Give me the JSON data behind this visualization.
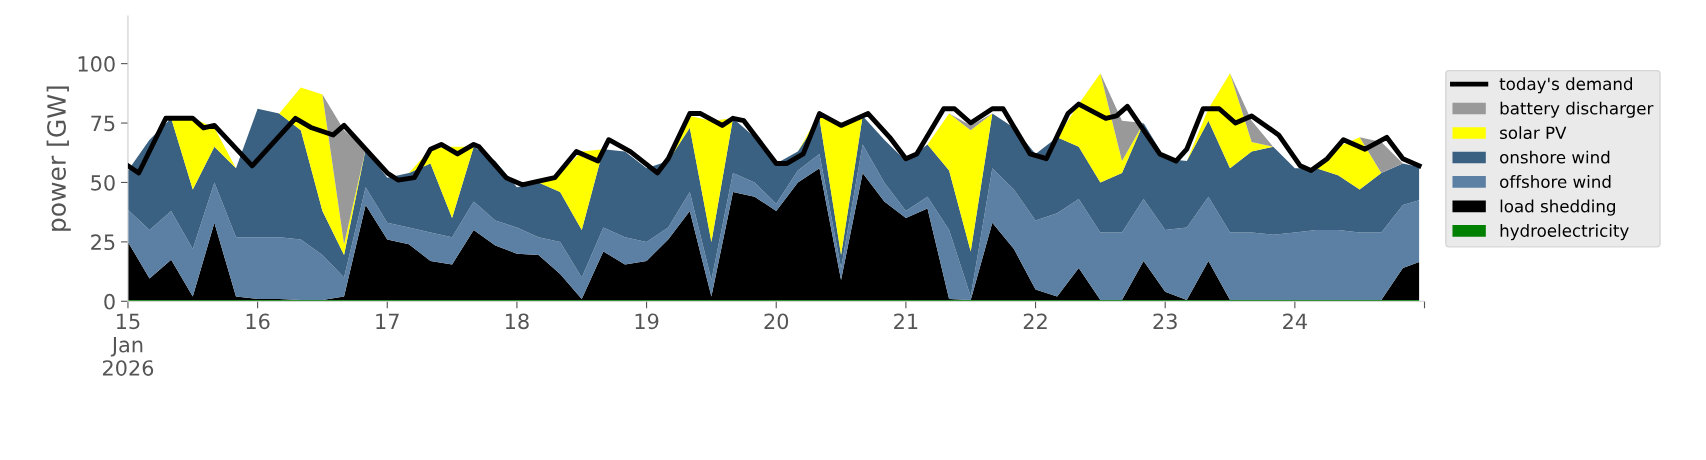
{
  "chart_data": {
    "type": "area",
    "stacked": true,
    "ylabel": "power [GW]",
    "x": [
      "2026-01-15T00:00",
      "2026-01-15T04:00",
      "2026-01-15T08:00",
      "2026-01-15T12:00",
      "2026-01-15T16:00",
      "2026-01-15T20:00",
      "2026-01-16T00:00",
      "2026-01-16T04:00",
      "2026-01-16T08:00",
      "2026-01-16T12:00",
      "2026-01-16T16:00",
      "2026-01-16T20:00",
      "2026-01-17T00:00",
      "2026-01-17T04:00",
      "2026-01-17T08:00",
      "2026-01-17T12:00",
      "2026-01-17T16:00",
      "2026-01-17T20:00",
      "2026-01-18T00:00",
      "2026-01-18T04:00",
      "2026-01-18T08:00",
      "2026-01-18T12:00",
      "2026-01-18T16:00",
      "2026-01-18T20:00",
      "2026-01-19T00:00",
      "2026-01-19T04:00",
      "2026-01-19T08:00",
      "2026-01-19T12:00",
      "2026-01-19T16:00",
      "2026-01-19T20:00",
      "2026-01-20T00:00",
      "2026-01-20T04:00",
      "2026-01-20T08:00",
      "2026-01-20T12:00",
      "2026-01-20T16:00",
      "2026-01-20T20:00",
      "2026-01-21T00:00",
      "2026-01-21T04:00",
      "2026-01-21T08:00",
      "2026-01-21T12:00",
      "2026-01-21T16:00",
      "2026-01-21T20:00",
      "2026-01-22T00:00",
      "2026-01-22T04:00",
      "2026-01-22T08:00",
      "2026-01-22T12:00",
      "2026-01-22T16:00",
      "2026-01-22T20:00",
      "2026-01-23T00:00",
      "2026-01-23T04:00",
      "2026-01-23T08:00",
      "2026-01-23T12:00",
      "2026-01-23T16:00",
      "2026-01-23T20:00",
      "2026-01-24T00:00",
      "2026-01-24T04:00",
      "2026-01-24T08:00",
      "2026-01-24T12:00",
      "2026-01-24T16:00",
      "2026-01-24T20:00",
      "2026-01-24T23:00"
    ],
    "series": [
      {
        "name": "hydroelectricity",
        "color": "#008000",
        "values": [
          0.5,
          0.5,
          0.5,
          0.5,
          0.5,
          0.5,
          0.5,
          0.5,
          0.5,
          0.5,
          0.5,
          0.5,
          0.5,
          0.5,
          0.5,
          0.5,
          0.5,
          0.5,
          0.5,
          0.5,
          0.5,
          0.5,
          0.5,
          0.5,
          0.5,
          0.5,
          0.5,
          0.5,
          0.5,
          0.5,
          0.5,
          0.5,
          0.5,
          0.5,
          0.5,
          0.5,
          0.5,
          0.5,
          0.5,
          0.5,
          0.5,
          0.5,
          0.5,
          0.5,
          0.5,
          0.5,
          0.5,
          0.5,
          0.5,
          0.5,
          0.5,
          0.5,
          0.5,
          0.5,
          0.5,
          0.5,
          0.5,
          0.5,
          0.5,
          0.5,
          0.5
        ]
      },
      {
        "name": "load shedding",
        "color": "#000000",
        "values": [
          24.5,
          9.1,
          17,
          1.5,
          32.5,
          1.5,
          0.5,
          0.5,
          0,
          0,
          1.5,
          40,
          25.5,
          23.5,
          16.5,
          15,
          29.5,
          23,
          19.5,
          19,
          11,
          0.5,
          20.5,
          15,
          16.5,
          25.5,
          37.5,
          1.5,
          45.5,
          43.5,
          37.5,
          49.5,
          55.5,
          8.5,
          53.5,
          41.5,
          34.5,
          38.5,
          0.5,
          0,
          32.5,
          21.5,
          4.5,
          1.5,
          13.5,
          0,
          0,
          16.5,
          3.5,
          0,
          16.5,
          0,
          0,
          0,
          0,
          0,
          0,
          0,
          0,
          13.5,
          16
        ]
      },
      {
        "name": "offshore wind",
        "color": "#5b80a4",
        "values": [
          13.5,
          20.4,
          20.5,
          20,
          17,
          25,
          26,
          26,
          25.5,
          19,
          8,
          7.5,
          7,
          7,
          12,
          11.5,
          12,
          10.5,
          11,
          7.5,
          13.5,
          9,
          10,
          11.5,
          8,
          5,
          8,
          7,
          8,
          6,
          3,
          5,
          6,
          5,
          12,
          8,
          3,
          5,
          29,
          1.5,
          23,
          25,
          29,
          35,
          29,
          28.5,
          28.5,
          26,
          26,
          30.5,
          27,
          28.5,
          28.5,
          27.5,
          28.5,
          29.5,
          29.5,
          28.5,
          28.5,
          26.5,
          26
        ]
      },
      {
        "name": "onshore wind",
        "color": "#3b6182",
        "values": [
          16.5,
          38,
          39,
          25,
          15,
          29,
          54,
          52,
          46,
          18.5,
          9.5,
          16,
          19,
          23,
          29,
          8,
          23,
          25,
          17,
          23,
          21,
          20,
          33,
          36,
          31,
          28,
          27,
          16,
          23,
          19,
          17,
          8,
          15,
          5.5,
          12,
          18,
          21,
          22,
          25,
          19,
          23,
          26,
          28,
          32,
          22,
          21,
          25,
          32,
          30,
          28,
          32,
          27,
          34,
          37,
          27,
          26,
          23,
          18,
          25,
          17.5,
          14
        ]
      },
      {
        "name": "solar PV",
        "color": "#ffff00",
        "values": [
          0,
          0,
          0,
          30,
          8,
          0,
          0,
          0,
          18,
          49,
          4.5,
          0,
          0,
          0,
          6,
          30,
          0,
          0,
          0,
          0,
          8,
          33,
          0,
          0,
          0,
          0,
          5,
          51,
          0,
          0,
          0,
          0,
          2,
          53.5,
          0,
          0,
          0,
          0,
          24,
          51,
          0,
          0,
          0,
          0,
          18,
          46,
          5,
          0,
          0,
          0,
          5,
          40,
          4,
          0,
          0,
          0,
          12,
          22,
          0,
          0,
          0
        ]
      },
      {
        "name": "battery discharger",
        "color": "#999999",
        "values": [
          0,
          0,
          0,
          0,
          0,
          0,
          0,
          0,
          0,
          0,
          48,
          0,
          0,
          0,
          0,
          0,
          0,
          0,
          0,
          0,
          0,
          0,
          0,
          0,
          0,
          0,
          0,
          0,
          0,
          0,
          0,
          0,
          0,
          0,
          0,
          0,
          0,
          0,
          0,
          2,
          0,
          0,
          0,
          0,
          0,
          0,
          17,
          0,
          0,
          0,
          0,
          0,
          9,
          0,
          0,
          0,
          0,
          0,
          13,
          0,
          0
        ]
      },
      {
        "name": "today's demand",
        "type": "line",
        "color": "#000000",
        "x": [
          "2026-01-15T00:00",
          "2026-01-15T02:00",
          "2026-01-15T07:00",
          "2026-01-15T12:00",
          "2026-01-15T14:00",
          "2026-01-15T16:00",
          "2026-01-15T23:00",
          "2026-01-16T07:00",
          "2026-01-16T10:00",
          "2026-01-16T14:00",
          "2026-01-16T16:00",
          "2026-01-17T00:00",
          "2026-01-17T02:00",
          "2026-01-17T05:00",
          "2026-01-17T08:00",
          "2026-01-17T10:00",
          "2026-01-17T13:00",
          "2026-01-17T16:00",
          "2026-01-17T17:00",
          "2026-01-17T22:00",
          "2026-01-18T01:00",
          "2026-01-18T03:00",
          "2026-01-18T07:00",
          "2026-01-18T11:00",
          "2026-01-18T15:00",
          "2026-01-18T17:00",
          "2026-01-18T21:00",
          "2026-01-19T02:00",
          "2026-01-19T04:00",
          "2026-01-19T08:00",
          "2026-01-19T10:00",
          "2026-01-19T14:00",
          "2026-01-19T16:00",
          "2026-01-19T18:00",
          "2026-01-20T00:00",
          "2026-01-20T02:00",
          "2026-01-20T05:00",
          "2026-01-20T08:00",
          "2026-01-20T12:00",
          "2026-01-20T17:00",
          "2026-01-20T21:00",
          "2026-01-21T00:00",
          "2026-01-21T02:00",
          "2026-01-21T07:00",
          "2026-01-21T09:00",
          "2026-01-21T12:00",
          "2026-01-21T16:00",
          "2026-01-21T18:00",
          "2026-01-21T23:00",
          "2026-01-22T02:00",
          "2026-01-22T06:00",
          "2026-01-22T08:00",
          "2026-01-22T13:00",
          "2026-01-22T15:00",
          "2026-01-22T17:00",
          "2026-01-22T23:00",
          "2026-01-23T02:00",
          "2026-01-23T04:00",
          "2026-01-23T07:00",
          "2026-01-23T10:00",
          "2026-01-23T13:00",
          "2026-01-23T16:00",
          "2026-01-23T21:00",
          "2026-01-24T01:00",
          "2026-01-24T03:00",
          "2026-01-24T06:00",
          "2026-01-24T09:00",
          "2026-01-24T13:00",
          "2026-01-24T17:00",
          "2026-01-24T20:00",
          "2026-01-24T23:00"
        ],
        "values": [
          57,
          54,
          77,
          77,
          73,
          74,
          57,
          77,
          73,
          70,
          74,
          54,
          51,
          52,
          64,
          66,
          62,
          66,
          65,
          52,
          49,
          50,
          52,
          63,
          59,
          68,
          63,
          54,
          60,
          79,
          79,
          74,
          77,
          76,
          58,
          58,
          62,
          79,
          74,
          79,
          69,
          60,
          62,
          81,
          81,
          75,
          81,
          81,
          62,
          60,
          79,
          83,
          77,
          78,
          82,
          62,
          59,
          64,
          81,
          81,
          75,
          78,
          70,
          57,
          55,
          60,
          68,
          64,
          69,
          60,
          57
        ]
      }
    ],
    "ylim": [
      0,
      120
    ],
    "yticks": [
      0,
      25,
      50,
      75,
      100
    ],
    "xlim": [
      "2026-01-15T00:00",
      "2026-01-25T00:00"
    ],
    "xticks": [
      {
        "value": "2026-01-15",
        "label": "15\nJan\n2026"
      },
      {
        "value": "2026-01-16",
        "label": "16"
      },
      {
        "value": "2026-01-17",
        "label": "17"
      },
      {
        "value": "2026-01-18",
        "label": "18"
      },
      {
        "value": "2026-01-19",
        "label": "19"
      },
      {
        "value": "2026-01-20",
        "label": "20"
      },
      {
        "value": "2026-01-21",
        "label": "21"
      },
      {
        "value": "2026-01-22",
        "label": "22"
      },
      {
        "value": "2026-01-23",
        "label": "23"
      },
      {
        "value": "2026-01-24",
        "label": "24"
      },
      {
        "value": "2026-01-25",
        "label": null
      }
    ],
    "grid": false,
    "legend": "right"
  }
}
